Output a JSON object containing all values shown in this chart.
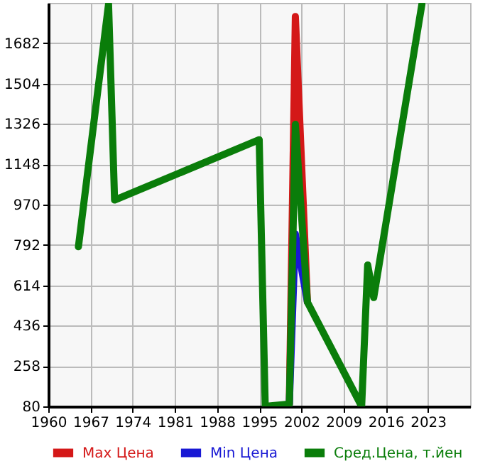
{
  "chart_data": {
    "type": "line",
    "x": [
      1965,
      1970,
      1971,
      1995,
      1996,
      2000,
      2001,
      2003,
      2012,
      2013,
      2014,
      2022
    ],
    "series": [
      {
        "name": "Max Цена",
        "color": "#d41818",
        "values": [
          null,
          null,
          null,
          null,
          null,
          90,
          1800,
          540,
          null,
          null,
          null,
          null
        ]
      },
      {
        "name": "Min Цена",
        "color": "#1818d4",
        "values": [
          null,
          null,
          null,
          null,
          null,
          90,
          840,
          540,
          null,
          null,
          null,
          null
        ]
      },
      {
        "name": "Сред.Цена, т.йен",
        "color": "#0a7d0a",
        "values": [
          784,
          1854,
          990,
          1256,
          80,
          90,
          1324,
          540,
          80,
          704,
          560,
          1854
        ]
      }
    ],
    "xlim": [
      1960,
      2030
    ],
    "ylim": [
      80,
      1860
    ],
    "xticks": [
      1960,
      1967,
      1974,
      1981,
      1988,
      1995,
      2002,
      2009,
      2016,
      2023
    ],
    "yticks": [
      80,
      258,
      436,
      614,
      792,
      970,
      1148,
      1326,
      1504,
      1682
    ],
    "grid": true,
    "legend": "bottom"
  }
}
